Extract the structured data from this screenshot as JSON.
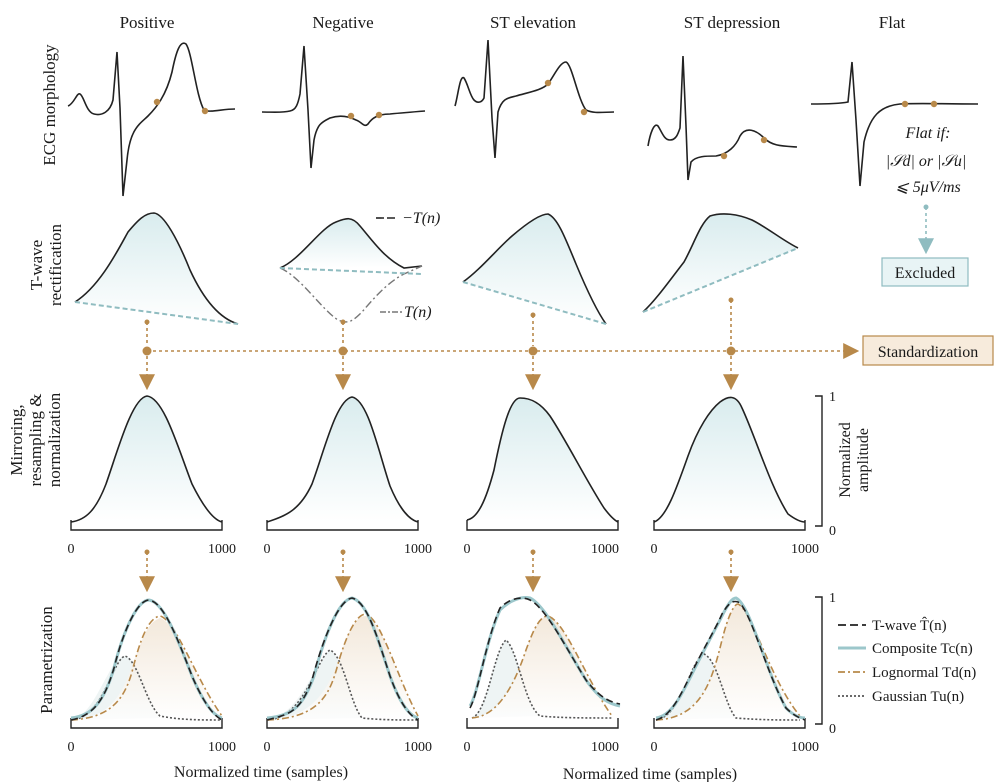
{
  "columns": [
    "Positive",
    "Negative",
    "ST elevation",
    "ST depression",
    "Flat"
  ],
  "row_labels": {
    "ecg": [
      "ECG morphology"
    ],
    "rect": [
      "T-wave",
      "rectification"
    ],
    "mirror": [
      "Mirroring,",
      "resampling &",
      "normalization"
    ],
    "param": [
      "Parametrization"
    ]
  },
  "annotations": {
    "neg_T": "−T(n)",
    "pos_T": "T(n)",
    "flat_note": [
      "Flat if:",
      "|𝒮d| or |𝒮u|",
      "⩽ 5μV/ms"
    ]
  },
  "boxes": {
    "excluded": "Excluded",
    "standardization": "Standardization"
  },
  "axes": {
    "x_ticks": [
      "0",
      "1000"
    ],
    "y_ticks": [
      "1",
      "0"
    ],
    "y_title": [
      "Normalized",
      "amplitude"
    ],
    "x_title": "Normalized time (samples)"
  },
  "legend": [
    {
      "label": "T-wave T̂(n)",
      "style": "dashed",
      "color": "#222222"
    },
    {
      "label": "Composite Tc(n)",
      "style": "solid",
      "color": "#9cc7cb"
    },
    {
      "label": "Lognormal Td(n)",
      "style": "dashdot",
      "color": "#b8894a"
    },
    {
      "label": "Gaussian Tu(n)",
      "style": "dotted",
      "color": "#555555"
    }
  ],
  "colors": {
    "ecg_line": "#222222",
    "marker": "#b8894a",
    "teal": "#8fbcc0",
    "tan_arrow": "#b8894a",
    "box_fill_teal": "#e8f4f5",
    "box_fill_tan": "#f7ebdc"
  },
  "icons": [
    "down-arrow-icon",
    "right-arrow-icon"
  ]
}
